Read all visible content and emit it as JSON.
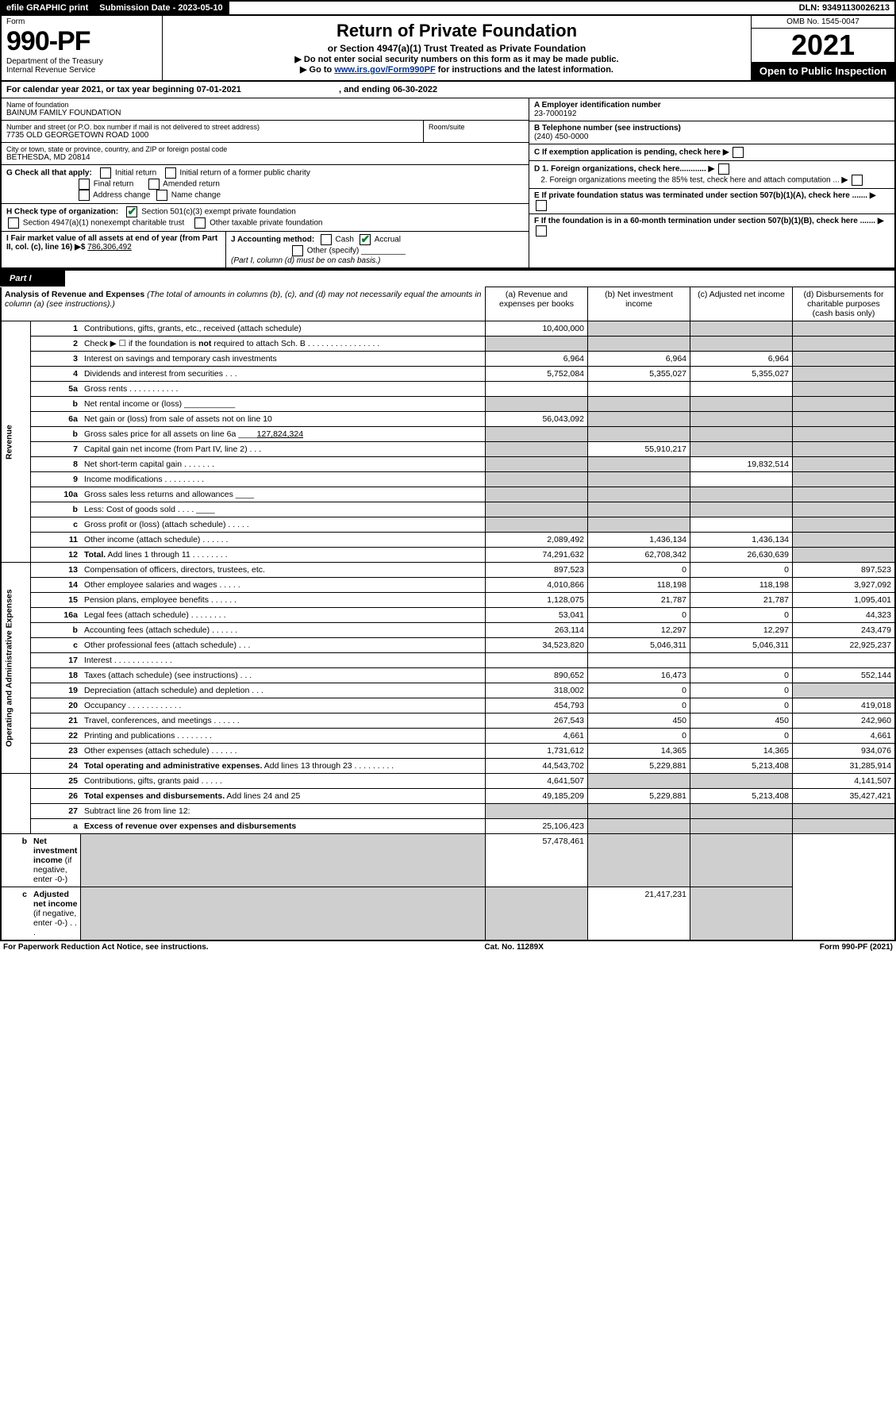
{
  "topbar": {
    "efile": "efile GRAPHIC print",
    "sub_lbl": "Submission Date - 2023-05-10",
    "dln": "DLN: 93491130026213"
  },
  "header": {
    "form_word": "Form",
    "form_no": "990-PF",
    "dept": "Department of the Treasury",
    "irs": "Internal Revenue Service",
    "title": "Return of Private Foundation",
    "subtitle": "or Section 4947(a)(1) Trust Treated as Private Foundation",
    "note1": "▶ Do not enter social security numbers on this form as it may be made public.",
    "note2_pre": "▶ Go to ",
    "note2_link": "www.irs.gov/Form990PF",
    "note2_post": " for instructions and the latest information.",
    "omb": "OMB No. 1545-0047",
    "year": "2021",
    "open": "Open to Public Inspection"
  },
  "cal": {
    "line": "For calendar year 2021, or tax year beginning 07-01-2021",
    "end": ", and ending 06-30-2022"
  },
  "info": {
    "name_lbl": "Name of foundation",
    "name": "BAINUM FAMILY FOUNDATION",
    "addr_lbl": "Number and street (or P.O. box number if mail is not delivered to street address)",
    "addr": "7735 OLD GEORGETOWN ROAD 1000",
    "room_lbl": "Room/suite",
    "city_lbl": "City or town, state or province, country, and ZIP or foreign postal code",
    "city": "BETHESDA, MD  20814",
    "a_lbl": "A Employer identification number",
    "a_val": "23-7000192",
    "b_lbl": "B Telephone number (see instructions)",
    "b_val": "(240) 450-0000",
    "c_lbl": "C If exemption application is pending, check here",
    "g_lbl": "G Check all that apply:",
    "g_initial": "Initial return",
    "g_final": "Final return",
    "g_addrchg": "Address change",
    "g_initial_former": "Initial return of a former public charity",
    "g_amended": "Amended return",
    "g_namechg": "Name change",
    "d1": "D 1. Foreign organizations, check here............",
    "d2": "2. Foreign organizations meeting the 85% test, check here and attach computation ...",
    "h_lbl": "H Check type of organization:",
    "h_501c3": "Section 501(c)(3) exempt private foundation",
    "h_4947": "Section 4947(a)(1) nonexempt charitable trust",
    "h_other": "Other taxable private foundation",
    "e_lbl": "E  If private foundation status was terminated under section 507(b)(1)(A), check here .......",
    "i_lbl": "I Fair market value of all assets at end of year (from Part II, col. (c), line 16) ▶$  ",
    "i_val": "786,306,492",
    "j_lbl": "J Accounting method:",
    "j_cash": "Cash",
    "j_accrual": "Accrual",
    "j_other": "Other (specify)",
    "j_note": "(Part I, column (d) must be on cash basis.)",
    "f_lbl": "F  If the foundation is in a 60-month termination under section 507(b)(1)(B), check here ......."
  },
  "part1": {
    "label": "Part I",
    "title": "Analysis of Revenue and Expenses",
    "note": " (The total of amounts in columns (b), (c), and (d) may not necessarily equal the amounts in column (a) (see instructions).)",
    "col_a": "(a)   Revenue and expenses per books",
    "col_b": "(b)   Net investment income",
    "col_c": "(c)   Adjusted net income",
    "col_d": "(d)   Disbursements for charitable purposes (cash basis only)"
  },
  "vlabels": {
    "rev": "Revenue",
    "exp": "Operating and Administrative Expenses"
  },
  "rows": [
    {
      "n": "1",
      "d": "Contributions, gifts, grants, etc., received (attach schedule)",
      "a": "10,400,000",
      "b": "",
      "c": "",
      "dd": "",
      "sb": true,
      "sc": true,
      "sd": true
    },
    {
      "n": "2",
      "d": "Check ▶ ☐ if the foundation is <b>not</b> required to attach Sch. B   .   .   .   .   .   .   .   .   .   .   .   .   .   .   .   .",
      "a": "",
      "b": "",
      "c": "",
      "dd": "",
      "sa": true,
      "sb": true,
      "sc": true,
      "sd": true
    },
    {
      "n": "3",
      "d": "Interest on savings and temporary cash investments",
      "a": "6,964",
      "b": "6,964",
      "c": "6,964",
      "dd": "",
      "sd": true
    },
    {
      "n": "4",
      "d": "Dividends and interest from securities   .   .   .",
      "a": "5,752,084",
      "b": "5,355,027",
      "c": "5,355,027",
      "dd": "",
      "sd": true
    },
    {
      "n": "5a",
      "d": "Gross rents   .   .   .   .   .   .   .   .   .   .   .",
      "a": "",
      "b": "",
      "c": "",
      "dd": "",
      "sd": true
    },
    {
      "n": "b",
      "d": "Net rental income or (loss)  ___________",
      "a": "",
      "b": "",
      "c": "",
      "dd": "",
      "sa": true,
      "sb": true,
      "sc": true,
      "sd": true
    },
    {
      "n": "6a",
      "d": "Net gain or (loss) from sale of assets not on line 10",
      "a": "56,043,092",
      "b": "",
      "c": "",
      "dd": "",
      "sb": true,
      "sc": true,
      "sd": true
    },
    {
      "n": "b",
      "d": "Gross sales price for all assets on line 6a ____<u>127,824,324</u>",
      "a": "",
      "b": "",
      "c": "",
      "dd": "",
      "sa": true,
      "sb": true,
      "sc": true,
      "sd": true
    },
    {
      "n": "7",
      "d": "Capital gain net income (from Part IV, line 2)   .   .   .",
      "a": "",
      "b": "55,910,217",
      "c": "",
      "dd": "",
      "sa": true,
      "sc": true,
      "sd": true
    },
    {
      "n": "8",
      "d": "Net short-term capital gain   .   .   .   .   .   .   .",
      "a": "",
      "b": "",
      "c": "19,832,514",
      "dd": "",
      "sa": true,
      "sb": true,
      "sd": true
    },
    {
      "n": "9",
      "d": "Income modifications   .   .   .   .   .   .   .   .   .",
      "a": "",
      "b": "",
      "c": "",
      "dd": "",
      "sa": true,
      "sb": true,
      "sd": true
    },
    {
      "n": "10a",
      "d": "Gross sales less returns and allowances  ____",
      "a": "",
      "b": "",
      "c": "",
      "dd": "",
      "sa": true,
      "sb": true,
      "sc": true,
      "sd": true
    },
    {
      "n": "b",
      "d": "Less: Cost of goods sold   .   .   .   .   ____",
      "a": "",
      "b": "",
      "c": "",
      "dd": "",
      "sa": true,
      "sb": true,
      "sc": true,
      "sd": true
    },
    {
      "n": "c",
      "d": "Gross profit or (loss) (attach schedule)   .   .   .   .   .",
      "a": "",
      "b": "",
      "c": "",
      "dd": "",
      "sa": true,
      "sb": true,
      "sd": true
    },
    {
      "n": "11",
      "d": "Other income (attach schedule)   .   .   .   .   .   .",
      "a": "2,089,492",
      "b": "1,436,134",
      "c": "1,436,134",
      "dd": "",
      "sd": true
    },
    {
      "n": "12",
      "d": "<b>Total.</b> Add lines 1 through 11   .   .   .   .   .   .   .   .",
      "a": "74,291,632",
      "b": "62,708,342",
      "c": "26,630,639",
      "dd": "",
      "sd": true,
      "bold": true
    },
    {
      "n": "13",
      "d": "Compensation of officers, directors, trustees, etc.",
      "a": "897,523",
      "b": "0",
      "c": "0",
      "dd": "897,523"
    },
    {
      "n": "14",
      "d": "Other employee salaries and wages   .   .   .   .   .",
      "a": "4,010,866",
      "b": "118,198",
      "c": "118,198",
      "dd": "3,927,092"
    },
    {
      "n": "15",
      "d": "Pension plans, employee benefits   .   .   .   .   .   .",
      "a": "1,128,075",
      "b": "21,787",
      "c": "21,787",
      "dd": "1,095,401"
    },
    {
      "n": "16a",
      "d": "Legal fees (attach schedule)   .   .   .   .   .   .   .   .",
      "a": "53,041",
      "b": "0",
      "c": "0",
      "dd": "44,323"
    },
    {
      "n": "b",
      "d": "Accounting fees (attach schedule)   .   .   .   .   .   .",
      "a": "263,114",
      "b": "12,297",
      "c": "12,297",
      "dd": "243,479"
    },
    {
      "n": "c",
      "d": "Other professional fees (attach schedule)   .   .   .",
      "a": "34,523,820",
      "b": "5,046,311",
      "c": "5,046,311",
      "dd": "22,925,237"
    },
    {
      "n": "17",
      "d": "Interest   .   .   .   .   .   .   .   .   .   .   .   .   .",
      "a": "",
      "b": "",
      "c": "",
      "dd": ""
    },
    {
      "n": "18",
      "d": "Taxes (attach schedule) (see instructions)   .   .   .",
      "a": "890,652",
      "b": "16,473",
      "c": "0",
      "dd": "552,144"
    },
    {
      "n": "19",
      "d": "Depreciation (attach schedule) and depletion   .   .   .",
      "a": "318,002",
      "b": "0",
      "c": "0",
      "dd": "",
      "sd": true
    },
    {
      "n": "20",
      "d": "Occupancy   .   .   .   .   .   .   .   .   .   .   .   .",
      "a": "454,793",
      "b": "0",
      "c": "0",
      "dd": "419,018"
    },
    {
      "n": "21",
      "d": "Travel, conferences, and meetings   .   .   .   .   .   .",
      "a": "267,543",
      "b": "450",
      "c": "450",
      "dd": "242,960"
    },
    {
      "n": "22",
      "d": "Printing and publications   .   .   .   .   .   .   .   .",
      "a": "4,661",
      "b": "0",
      "c": "0",
      "dd": "4,661"
    },
    {
      "n": "23",
      "d": "Other expenses (attach schedule)   .   .   .   .   .   .",
      "a": "1,731,612",
      "b": "14,365",
      "c": "14,365",
      "dd": "934,076"
    },
    {
      "n": "24",
      "d": "<b>Total operating and administrative expenses.</b> Add lines 13 through 23   .   .   .   .   .   .   .   .   .",
      "a": "44,543,702",
      "b": "5,229,881",
      "c": "5,213,408",
      "dd": "31,285,914"
    },
    {
      "n": "25",
      "d": "Contributions, gifts, grants paid   .   .   .   .   .",
      "a": "4,641,507",
      "b": "",
      "c": "",
      "dd": "4,141,507",
      "sb": true,
      "sc": true
    },
    {
      "n": "26",
      "d": "<b>Total expenses and disbursements.</b> Add lines 24 and 25",
      "a": "49,185,209",
      "b": "5,229,881",
      "c": "5,213,408",
      "dd": "35,427,421"
    },
    {
      "n": "27",
      "d": "Subtract line 26 from line 12:",
      "a": "",
      "b": "",
      "c": "",
      "dd": "",
      "sa": true,
      "sb": true,
      "sc": true,
      "sd": true
    },
    {
      "n": "a",
      "d": "<b>Excess of revenue over expenses and disbursements</b>",
      "a": "25,106,423",
      "b": "",
      "c": "",
      "dd": "",
      "sb": true,
      "sc": true,
      "sd": true
    },
    {
      "n": "b",
      "d": "<b>Net investment income</b> (if negative, enter -0-)",
      "a": "",
      "b": "57,478,461",
      "c": "",
      "dd": "",
      "sa": true,
      "sc": true,
      "sd": true
    },
    {
      "n": "c",
      "d": "<b>Adjusted net income</b> (if negative, enter -0-)   .   .   .",
      "a": "",
      "b": "",
      "c": "21,417,231",
      "dd": "",
      "sa": true,
      "sb": true,
      "sd": true
    }
  ],
  "footer": {
    "left": "For Paperwork Reduction Act Notice, see instructions.",
    "mid": "Cat. No. 11289X",
    "right": "Form 990-PF (2021)"
  }
}
